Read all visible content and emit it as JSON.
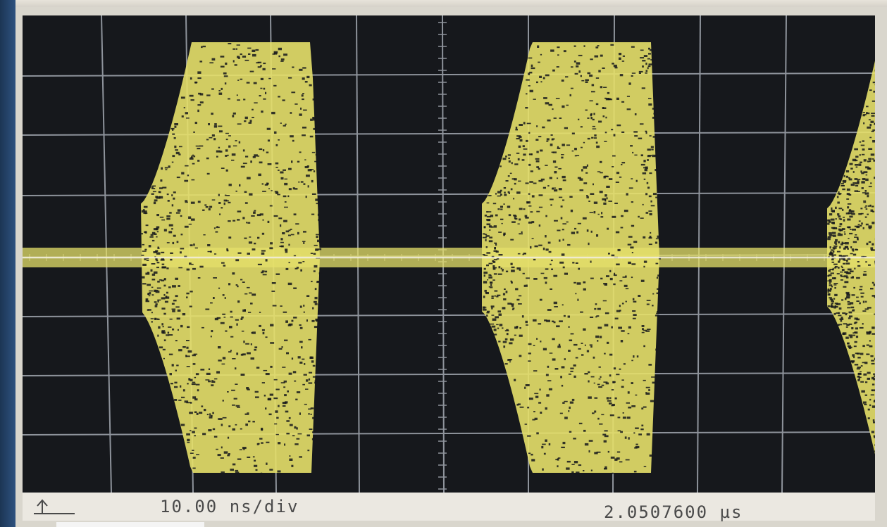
{
  "status_bar": {
    "timebase": "10.00 ns/div",
    "delay": "2.0507600 µs"
  },
  "display": {
    "grid_divisions": {
      "x": 10,
      "y": 8
    },
    "trace_color": "#e6e06a",
    "grid_color": "#8e939b",
    "screen_background": "#16181c",
    "pulses": [
      {
        "index": 1,
        "amplitude_fraction": 0.93
      },
      {
        "index": 2,
        "amplitude_fraction": 0.93
      },
      {
        "index": 3,
        "amplitude_fraction": 0.85,
        "truncated": true
      }
    ]
  },
  "icons": {
    "trigger": "trigger-edge-icon"
  }
}
